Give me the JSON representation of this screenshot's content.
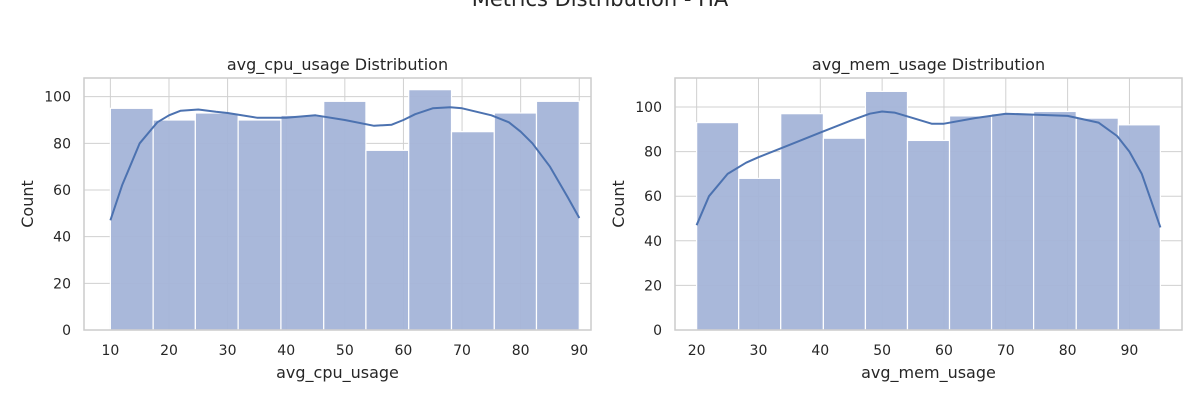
{
  "figure": {
    "title": "Metrics Distribution - HA"
  },
  "colors": {
    "bar_fill": "#a4b4d8",
    "bar_edge": "#ffffff",
    "kde_line": "#4c72b0",
    "grid": "#d0d0d0",
    "axis": "#cccccc"
  },
  "chart_data": [
    {
      "type": "bar",
      "subtype": "histogram-with-kde",
      "title": "avg_cpu_usage Distribution",
      "xlabel": "avg_cpu_usage",
      "ylabel": "Count",
      "xlim": [
        5.5,
        92.0
      ],
      "ylim": [
        0,
        108
      ],
      "xticks": [
        10,
        20,
        30,
        40,
        50,
        60,
        70,
        80,
        90
      ],
      "yticks": [
        0,
        20,
        40,
        60,
        80,
        100
      ],
      "grid": true,
      "bin_edges": [
        10.0,
        17.3,
        24.5,
        31.8,
        39.1,
        46.4,
        53.6,
        60.9,
        68.2,
        75.5,
        82.7,
        90.0
      ],
      "values": [
        95,
        90,
        93,
        90,
        92,
        98,
        77,
        103,
        85,
        93,
        98
      ],
      "kde": {
        "x": [
          10,
          12,
          15,
          18,
          20,
          22,
          25,
          28,
          30,
          35,
          40,
          45,
          50,
          55,
          58,
          60,
          62,
          65,
          68,
          70,
          75,
          78,
          80,
          82,
          85,
          88,
          90
        ],
        "y": [
          47,
          62,
          80,
          89,
          92,
          94,
          94.5,
          93.5,
          93,
          91,
          91,
          92,
          90,
          87.5,
          88,
          90,
          92.5,
          95,
          95.5,
          95,
          92,
          89,
          85,
          80,
          70,
          57,
          48
        ]
      }
    },
    {
      "type": "bar",
      "subtype": "histogram-with-kde",
      "title": "avg_mem_usage Distribution",
      "xlabel": "avg_mem_usage",
      "ylabel": "Count",
      "xlim": [
        16.5,
        98.5
      ],
      "ylim": [
        0,
        113
      ],
      "xticks": [
        20,
        30,
        40,
        50,
        60,
        70,
        80,
        90
      ],
      "yticks": [
        0,
        20,
        40,
        60,
        80,
        100
      ],
      "grid": true,
      "bin_edges": [
        20.0,
        26.8,
        33.6,
        40.5,
        47.3,
        54.1,
        60.9,
        67.7,
        74.5,
        81.4,
        88.2,
        95.0
      ],
      "values": [
        93,
        68,
        97,
        86,
        107,
        85,
        96,
        97,
        98,
        95,
        92
      ],
      "kde": {
        "x": [
          20,
          22,
          25,
          28,
          30,
          35,
          40,
          45,
          48,
          50,
          52,
          55,
          58,
          60,
          65,
          70,
          75,
          80,
          85,
          88,
          90,
          92,
          95
        ],
        "y": [
          47,
          60,
          70,
          75,
          77.5,
          83,
          88.5,
          94,
          97,
          98,
          97.5,
          95,
          92.5,
          92.5,
          95,
          97,
          96.5,
          96,
          93,
          87,
          80,
          70,
          46
        ]
      }
    }
  ]
}
